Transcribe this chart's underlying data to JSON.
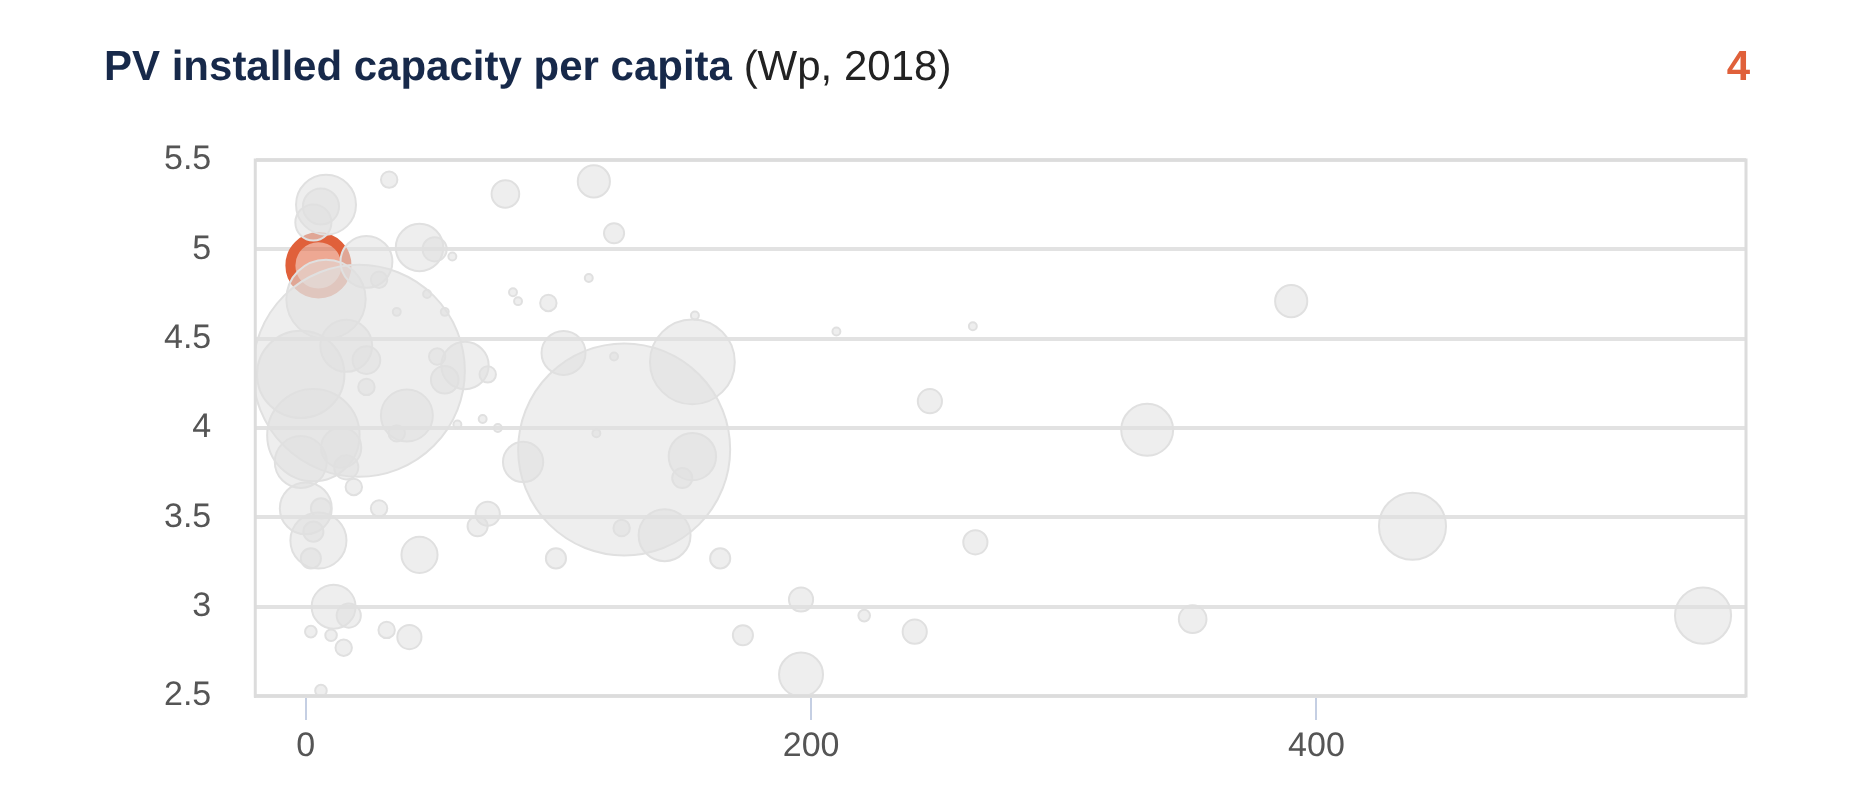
{
  "chart_data": {
    "type": "bubble",
    "title": "PV installed capacity per capita (Wp, 2018)",
    "annotations": [
      "4"
    ],
    "xlim": [
      -20,
      570
    ],
    "xticks": [
      0,
      200,
      400
    ],
    "ylim": [
      2.5,
      5.5
    ],
    "yticks": [
      2.5,
      3,
      3.5,
      4,
      4.5,
      5,
      5.5
    ],
    "grid": "y",
    "series": [
      {
        "color": "#e0e0e0",
        "x": [
          33,
          79,
          114,
          45,
          51,
          58,
          122,
          112,
          82,
          84,
          96,
          48,
          55,
          36,
          154,
          210,
          102,
          122,
          153,
          63,
          55,
          72,
          52,
          40,
          36,
          60,
          70,
          76,
          115,
          126,
          153,
          149,
          86,
          72,
          68,
          125,
          142,
          45,
          99,
          164,
          29,
          196,
          221,
          32,
          41,
          173,
          196,
          264,
          390,
          247,
          333,
          438,
          265,
          351,
          241,
          553,
          8,
          6,
          3,
          24,
          29,
          8,
          21,
          -2,
          16,
          24,
          24,
          3,
          -2,
          14,
          16,
          19,
          0,
          6,
          3,
          5,
          2,
          11,
          17,
          2,
          10,
          15,
          6
        ],
        "values": [
          5.39,
          5.31,
          5.38,
          5.01,
          5.0,
          4.96,
          5.09,
          4.84,
          4.76,
          4.71,
          4.7,
          4.75,
          4.65,
          4.65,
          4.63,
          4.54,
          4.42,
          4.4,
          4.37,
          4.35,
          4.27,
          4.3,
          4.4,
          4.07,
          3.97,
          4.02,
          4.05,
          4.0,
          3.97,
          3.88,
          3.84,
          3.72,
          3.81,
          3.52,
          3.45,
          3.44,
          3.4,
          3.29,
          3.27,
          3.27,
          3.55,
          3.04,
          2.95,
          2.87,
          2.83,
          2.84,
          2.62,
          4.57,
          4.71,
          4.15,
          3.99,
          3.45,
          3.36,
          2.93,
          2.86,
          2.95,
          5.25,
          5.24,
          5.15,
          4.93,
          4.83,
          4.72,
          4.32,
          4.3,
          4.46,
          4.38,
          4.23,
          3.96,
          3.81,
          3.89,
          3.78,
          3.67,
          3.55,
          3.55,
          3.42,
          3.37,
          3.27,
          3.0,
          2.95,
          2.86,
          2.84,
          2.77,
          2.53
        ],
        "sizes": [
          0.006,
          0.017,
          0.023,
          0.05,
          0.013,
          0.0014,
          0.009,
          0.0014,
          0.0014,
          0.0014,
          0.006,
          0.0014,
          0.0014,
          0.0014,
          0.0014,
          0.0014,
          0.043,
          0.0014,
          0.16,
          0.05,
          0.017,
          0.006,
          0.006,
          0.06,
          0.006,
          0.0014,
          0.0014,
          0.0014,
          0.0014,
          1,
          0.05,
          0.009,
          0.036,
          0.013,
          0.009,
          0.006,
          0.06,
          0.029,
          0.009,
          0.009,
          0.006,
          0.013,
          0.003,
          0.006,
          0.013,
          0.009,
          0.043,
          0.0014,
          0.023,
          0.013,
          0.06,
          0.1,
          0.013,
          0.017,
          0.013,
          0.07,
          0.08,
          0.029,
          0.029,
          0.06,
          0.006,
          0.14,
          1,
          0.17,
          0.06,
          0.017,
          0.006,
          0.19,
          0.06,
          0.036,
          0.013,
          0.006,
          0.06,
          0.009,
          0.009,
          0.07,
          0.009,
          0.043,
          0.013,
          0.003,
          0.003,
          0.006,
          0.003
        ]
      },
      {
        "color": "#e0603a",
        "x": [
          5
        ],
        "values": [
          4.91
        ],
        "sizes": [
          0.07
        ]
      }
    ]
  }
}
